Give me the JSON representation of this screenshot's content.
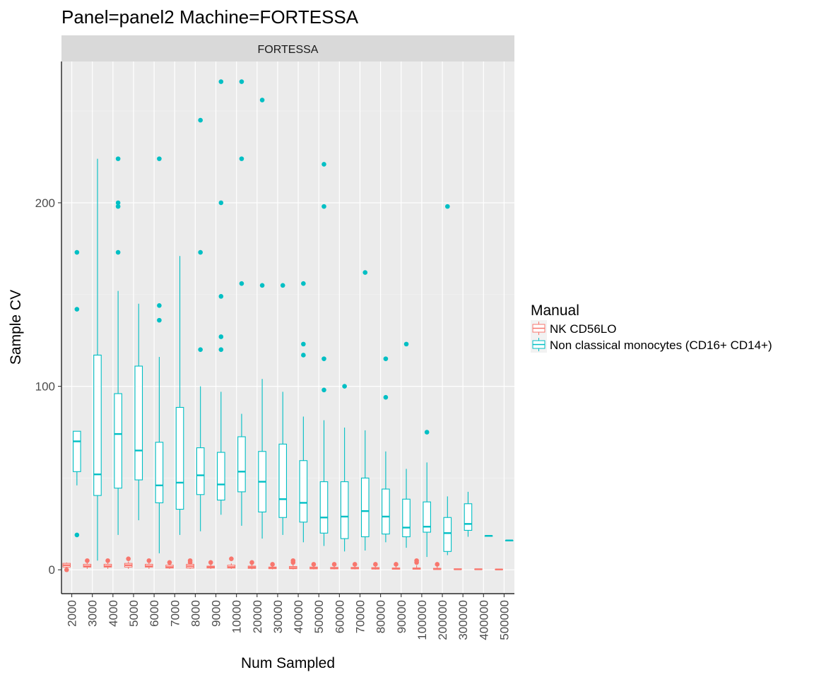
{
  "chart_data": {
    "type": "boxplot",
    "title": "Panel=panel2 Machine=FORTESSA",
    "facet_label": "FORTESSA",
    "xlabel": "Num Sampled",
    "ylabel": "Sample CV",
    "ylim": [
      -13,
      277
    ],
    "yticks": [
      0,
      100,
      200
    ],
    "grid": "on",
    "legend_position": "right",
    "legend_title": "Manual",
    "categories": [
      "2000",
      "3000",
      "4000",
      "5000",
      "6000",
      "7000",
      "8000",
      "9000",
      "10000",
      "20000",
      "30000",
      "40000",
      "50000",
      "60000",
      "70000",
      "80000",
      "90000",
      "100000",
      "200000",
      "300000",
      "400000",
      "500000"
    ],
    "series": [
      {
        "name": "NK CD56LO",
        "color": "#F8766D",
        "boxes": [
          {
            "min": 1,
            "q1": 1.5,
            "median": 2.5,
            "q3": 3.5,
            "max": 4,
            "outliers": [
              0
            ]
          },
          {
            "min": 0.5,
            "q1": 1.5,
            "median": 2,
            "q3": 3,
            "max": 4,
            "outliers": [
              5
            ]
          },
          {
            "min": 0.5,
            "q1": 1.5,
            "median": 2,
            "q3": 3,
            "max": 4,
            "outliers": [
              5
            ]
          },
          {
            "min": 0.5,
            "q1": 1.5,
            "median": 2.5,
            "q3": 3.5,
            "max": 4.5,
            "outliers": [
              6
            ]
          },
          {
            "min": 0.5,
            "q1": 1.5,
            "median": 2,
            "q3": 3,
            "max": 4,
            "outliers": [
              5
            ]
          },
          {
            "min": 0.5,
            "q1": 1,
            "median": 1.5,
            "q3": 2.5,
            "max": 3,
            "outliers": [
              4
            ]
          },
          {
            "min": 0.5,
            "q1": 1,
            "median": 2,
            "q3": 3,
            "max": 3.5,
            "outliers": [
              4,
              5
            ]
          },
          {
            "min": 0.5,
            "q1": 1,
            "median": 1.5,
            "q3": 2,
            "max": 3,
            "outliers": [
              4
            ]
          },
          {
            "min": 0.5,
            "q1": 1,
            "median": 1.5,
            "q3": 2.5,
            "max": 3.5,
            "outliers": [
              6
            ]
          },
          {
            "min": 0.3,
            "q1": 0.8,
            "median": 1.3,
            "q3": 2,
            "max": 3,
            "outliers": [
              4
            ]
          },
          {
            "min": 0.2,
            "q1": 0.6,
            "median": 1,
            "q3": 1.5,
            "max": 2.5,
            "outliers": [
              3
            ]
          },
          {
            "min": 0.2,
            "q1": 0.6,
            "median": 1,
            "q3": 1.8,
            "max": 3,
            "outliers": [
              5,
              4
            ]
          },
          {
            "min": 0.2,
            "q1": 0.5,
            "median": 0.9,
            "q3": 1.5,
            "max": 2.5,
            "outliers": [
              3
            ]
          },
          {
            "min": 0.2,
            "q1": 0.5,
            "median": 0.8,
            "q3": 1.3,
            "max": 2,
            "outliers": [
              3
            ]
          },
          {
            "min": 0.2,
            "q1": 0.5,
            "median": 0.8,
            "q3": 1.3,
            "max": 2.5,
            "outliers": [
              3
            ]
          },
          {
            "min": 0.1,
            "q1": 0.4,
            "median": 0.7,
            "q3": 1.2,
            "max": 2,
            "outliers": [
              3
            ]
          },
          {
            "min": 0.1,
            "q1": 0.3,
            "median": 0.6,
            "q3": 1,
            "max": 2,
            "outliers": [
              3
            ]
          },
          {
            "min": 0.1,
            "q1": 0.3,
            "median": 0.6,
            "q3": 1,
            "max": 2.5,
            "outliers": [
              4,
              5
            ]
          },
          {
            "min": 0.1,
            "q1": 0.2,
            "median": 0.4,
            "q3": 0.8,
            "max": 2,
            "outliers": [
              3
            ]
          },
          {
            "min": 0.1,
            "q1": 0.2,
            "median": 0.3,
            "q3": 0.5,
            "max": 0.7,
            "outliers": []
          },
          {
            "min": 0.1,
            "q1": 0.2,
            "median": 0.3,
            "q3": 0.4,
            "max": 0.5,
            "outliers": []
          },
          {
            "min": 0.1,
            "q1": 0.1,
            "median": 0.2,
            "q3": 0.3,
            "max": 0.4,
            "outliers": []
          }
        ]
      },
      {
        "name": "Non classical monocytes (CD16+ CD14+)",
        "color": "#00BFC4",
        "boxes": [
          {
            "min": 46,
            "q1": 53.5,
            "median": 70,
            "q3": 75.5,
            "max": 75.5,
            "outliers": [
              173,
              142,
              19
            ]
          },
          {
            "min": 5,
            "q1": 40.5,
            "median": 52,
            "q3": 117,
            "max": 224,
            "outliers": []
          },
          {
            "min": 19,
            "q1": 44.5,
            "median": 74,
            "q3": 96,
            "max": 152,
            "outliers": [
              224,
              200,
              198,
              173
            ]
          },
          {
            "min": 27,
            "q1": 49,
            "median": 65,
            "q3": 111,
            "max": 145,
            "outliers": []
          },
          {
            "min": 9,
            "q1": 36.5,
            "median": 46,
            "q3": 69.5,
            "max": 116,
            "outliers": [
              224,
              144,
              136
            ]
          },
          {
            "min": 19,
            "q1": 33,
            "median": 47.5,
            "q3": 88.5,
            "max": 171,
            "outliers": []
          },
          {
            "min": 21,
            "q1": 41,
            "median": 51.5,
            "q3": 66.5,
            "max": 100,
            "outliers": [
              245,
              173,
              120
            ]
          },
          {
            "min": 30,
            "q1": 38,
            "median": 46.5,
            "q3": 64,
            "max": 97,
            "outliers": [
              266,
              200,
              149,
              127,
              120
            ]
          },
          {
            "min": 24,
            "q1": 42.5,
            "median": 53.5,
            "q3": 72.5,
            "max": 85,
            "outliers": [
              266,
              224,
              156
            ]
          },
          {
            "min": 17,
            "q1": 31.5,
            "median": 48,
            "q3": 64.5,
            "max": 104,
            "outliers": [
              256,
              155
            ]
          },
          {
            "min": 19,
            "q1": 28.5,
            "median": 38.5,
            "q3": 68.5,
            "max": 97,
            "outliers": [
              155
            ]
          },
          {
            "min": 15,
            "q1": 26,
            "median": 36.5,
            "q3": 59.5,
            "max": 83.5,
            "outliers": [
              156,
              123,
              117
            ]
          },
          {
            "min": 13,
            "q1": 20,
            "median": 28.5,
            "q3": 48,
            "max": 81.5,
            "outliers": [
              221,
              198,
              115,
              98
            ]
          },
          {
            "min": 10,
            "q1": 17,
            "median": 29,
            "q3": 48,
            "max": 77.5,
            "outliers": [
              100
            ]
          },
          {
            "min": 10.5,
            "q1": 18,
            "median": 32,
            "q3": 50,
            "max": 76,
            "outliers": [
              162
            ]
          },
          {
            "min": 15,
            "q1": 19.5,
            "median": 29,
            "q3": 44,
            "max": 64.5,
            "outliers": [
              115,
              94
            ]
          },
          {
            "min": 12,
            "q1": 18,
            "median": 23,
            "q3": 38.5,
            "max": 55,
            "outliers": [
              123
            ]
          },
          {
            "min": 7,
            "q1": 20.5,
            "median": 23.5,
            "q3": 37,
            "max": 58.5,
            "outliers": [
              75
            ]
          },
          {
            "min": 8,
            "q1": 10,
            "median": 20,
            "q3": 28.5,
            "max": 40,
            "outliers": [
              198
            ]
          },
          {
            "min": 18,
            "q1": 21.5,
            "median": 25,
            "q3": 36,
            "max": 42.5,
            "outliers": []
          },
          {
            "min": 18.5,
            "q1": 18.5,
            "median": 18.5,
            "q3": 18.5,
            "max": 18.5,
            "outliers": []
          },
          {
            "min": 16,
            "q1": 16,
            "median": 16,
            "q3": 16,
            "max": 16,
            "outliers": []
          }
        ]
      }
    ]
  }
}
